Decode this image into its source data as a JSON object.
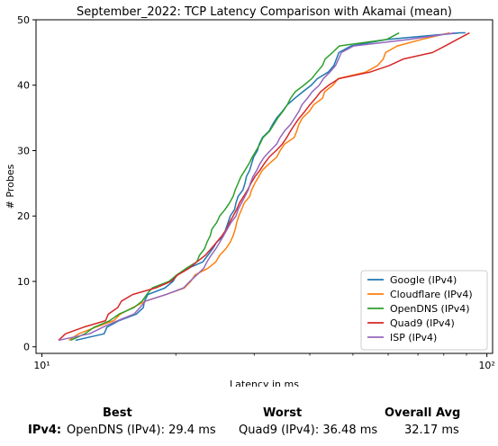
{
  "chart_data": {
    "type": "line",
    "title": "September_2022: TCP Latency Comparison with Akamai (mean)",
    "xlabel": "Latency in ms",
    "ylabel": "# Probes",
    "xscale": "log",
    "xlim": [
      9.7,
      103
    ],
    "ylim": [
      -1,
      50
    ],
    "yticks": [
      0,
      10,
      20,
      30,
      40,
      50
    ],
    "xticks": [
      {
        "value": 10,
        "label": "10¹"
      },
      {
        "value": 100,
        "label": "10²"
      }
    ],
    "grid": false,
    "legend_position": "lower-right",
    "series": [
      {
        "name": "Google (IPv4)",
        "color": "#1f77b4",
        "points": [
          [
            11.9,
            1
          ],
          [
            13.8,
            2
          ],
          [
            14.0,
            3
          ],
          [
            14.9,
            4
          ],
          [
            16.3,
            5
          ],
          [
            16.9,
            6
          ],
          [
            17.0,
            7
          ],
          [
            17.3,
            8
          ],
          [
            18.9,
            9
          ],
          [
            19.7,
            10
          ],
          [
            20.1,
            11
          ],
          [
            21.3,
            12
          ],
          [
            23.0,
            13
          ],
          [
            23.6,
            14
          ],
          [
            24.2,
            15
          ],
          [
            24.7,
            16
          ],
          [
            25.6,
            17
          ],
          [
            25.9,
            18
          ],
          [
            26.2,
            19
          ],
          [
            26.5,
            20
          ],
          [
            27.1,
            21
          ],
          [
            27.3,
            22
          ],
          [
            27.6,
            23
          ],
          [
            28.3,
            24
          ],
          [
            28.6,
            25
          ],
          [
            28.8,
            26
          ],
          [
            29.3,
            27
          ],
          [
            29.6,
            28
          ],
          [
            29.9,
            29
          ],
          [
            30.5,
            30
          ],
          [
            30.8,
            31
          ],
          [
            31.3,
            32
          ],
          [
            32.4,
            33
          ],
          [
            33.0,
            34
          ],
          [
            33.7,
            35
          ],
          [
            34.7,
            36
          ],
          [
            35.6,
            37
          ],
          [
            37.0,
            38
          ],
          [
            38.6,
            39
          ],
          [
            40.3,
            40
          ],
          [
            41.6,
            41
          ],
          [
            44.0,
            42
          ],
          [
            45.3,
            43
          ],
          [
            46.5,
            45
          ],
          [
            49.5,
            46
          ],
          [
            59.7,
            47
          ],
          [
            86.9,
            48
          ],
          [
            89.5,
            48
          ]
        ]
      },
      {
        "name": "Cloudflare (IPv4)",
        "color": "#ff7f0e",
        "points": [
          [
            11.5,
            1
          ],
          [
            12.1,
            2
          ],
          [
            13.2,
            3
          ],
          [
            14.5,
            4
          ],
          [
            15.0,
            5
          ],
          [
            16.0,
            6
          ],
          [
            17.1,
            7
          ],
          [
            19.0,
            8
          ],
          [
            20.9,
            9
          ],
          [
            21.6,
            10
          ],
          [
            22.1,
            11
          ],
          [
            23.6,
            12
          ],
          [
            24.6,
            13
          ],
          [
            25.1,
            14
          ],
          [
            25.9,
            15
          ],
          [
            26.5,
            16
          ],
          [
            26.9,
            17
          ],
          [
            27.2,
            18
          ],
          [
            27.4,
            19
          ],
          [
            27.7,
            20
          ],
          [
            28.1,
            21
          ],
          [
            28.5,
            22
          ],
          [
            29.3,
            23
          ],
          [
            29.6,
            24
          ],
          [
            30.1,
            25
          ],
          [
            30.7,
            26
          ],
          [
            31.3,
            27
          ],
          [
            32.4,
            28
          ],
          [
            33.7,
            29
          ],
          [
            34.3,
            30
          ],
          [
            35.1,
            31
          ],
          [
            36.9,
            32
          ],
          [
            37.4,
            33
          ],
          [
            37.8,
            34
          ],
          [
            38.5,
            35
          ],
          [
            39.9,
            36
          ],
          [
            40.8,
            37
          ],
          [
            42.7,
            38
          ],
          [
            43.2,
            39
          ],
          [
            45.1,
            40
          ],
          [
            46.3,
            41
          ],
          [
            53.4,
            42
          ],
          [
            56.8,
            43
          ],
          [
            58.5,
            44
          ],
          [
            59.2,
            45
          ],
          [
            62.9,
            46
          ],
          [
            71.4,
            47
          ],
          [
            82.4,
            48
          ]
        ]
      },
      {
        "name": "OpenDNS (IPv4)",
        "color": "#2ca02c",
        "points": [
          [
            11.6,
            1
          ],
          [
            12.5,
            2
          ],
          [
            13.1,
            3
          ],
          [
            14.2,
            4
          ],
          [
            14.9,
            5
          ],
          [
            16.1,
            6
          ],
          [
            16.8,
            7
          ],
          [
            17.2,
            8
          ],
          [
            17.7,
            9
          ],
          [
            19.3,
            10
          ],
          [
            20.1,
            11
          ],
          [
            21.1,
            12
          ],
          [
            22.3,
            13
          ],
          [
            22.6,
            14
          ],
          [
            23.2,
            15
          ],
          [
            23.5,
            16
          ],
          [
            23.9,
            17
          ],
          [
            24.1,
            18
          ],
          [
            24.7,
            19
          ],
          [
            25.1,
            20
          ],
          [
            25.8,
            21
          ],
          [
            26.4,
            22
          ],
          [
            26.9,
            23
          ],
          [
            27.2,
            24
          ],
          [
            27.6,
            25
          ],
          [
            28.0,
            26
          ],
          [
            28.6,
            27
          ],
          [
            29.2,
            28
          ],
          [
            29.7,
            29
          ],
          [
            30.3,
            30
          ],
          [
            30.9,
            31
          ],
          [
            31.4,
            32
          ],
          [
            32.5,
            33
          ],
          [
            33.2,
            34
          ],
          [
            33.9,
            35
          ],
          [
            34.8,
            36
          ],
          [
            35.6,
            37
          ],
          [
            36.2,
            38
          ],
          [
            37.1,
            39
          ],
          [
            38.8,
            40
          ],
          [
            40.4,
            41
          ],
          [
            41.5,
            42
          ],
          [
            42.7,
            43
          ],
          [
            43.3,
            44
          ],
          [
            45.0,
            45
          ],
          [
            46.6,
            46
          ],
          [
            59.6,
            47
          ],
          [
            63.5,
            48
          ]
        ]
      },
      {
        "name": "Quad9 (IPv4)",
        "color": "#d62728",
        "points": [
          [
            10.9,
            1
          ],
          [
            11.3,
            2
          ],
          [
            12.4,
            3
          ],
          [
            13.9,
            4
          ],
          [
            14.1,
            5
          ],
          [
            14.8,
            6
          ],
          [
            15.1,
            7
          ],
          [
            16.0,
            8
          ],
          [
            18.0,
            9
          ],
          [
            19.5,
            10
          ],
          [
            20.2,
            11
          ],
          [
            21.4,
            12
          ],
          [
            22.3,
            13
          ],
          [
            23.3,
            14
          ],
          [
            24.0,
            15
          ],
          [
            24.7,
            16
          ],
          [
            25.4,
            17
          ],
          [
            26.0,
            18
          ],
          [
            26.4,
            19
          ],
          [
            26.9,
            20
          ],
          [
            27.4,
            21
          ],
          [
            27.8,
            22
          ],
          [
            28.4,
            23
          ],
          [
            29.0,
            24
          ],
          [
            29.5,
            25
          ],
          [
            30.1,
            26
          ],
          [
            30.9,
            27
          ],
          [
            31.6,
            28
          ],
          [
            32.4,
            29
          ],
          [
            33.6,
            30
          ],
          [
            34.7,
            31
          ],
          [
            35.5,
            32
          ],
          [
            36.2,
            33
          ],
          [
            37.0,
            34
          ],
          [
            37.9,
            35
          ],
          [
            39.0,
            36
          ],
          [
            40.0,
            37
          ],
          [
            41.2,
            38
          ],
          [
            42.3,
            39
          ],
          [
            44.1,
            40
          ],
          [
            46.5,
            41
          ],
          [
            54.6,
            42
          ],
          [
            60.3,
            43
          ],
          [
            64.9,
            44
          ],
          [
            75.5,
            45
          ],
          [
            80.6,
            46
          ],
          [
            85.8,
            47
          ],
          [
            91.4,
            48
          ]
        ]
      },
      {
        "name": "ISP (IPv4)",
        "color": "#9467bd",
        "points": [
          [
            10.9,
            1
          ],
          [
            12.8,
            2
          ],
          [
            13.7,
            3
          ],
          [
            14.8,
            4
          ],
          [
            16.1,
            5
          ],
          [
            16.6,
            6
          ],
          [
            17.1,
            7
          ],
          [
            19.0,
            8
          ],
          [
            20.8,
            9
          ],
          [
            21.5,
            10
          ],
          [
            22.3,
            11
          ],
          [
            23.1,
            12
          ],
          [
            23.5,
            13
          ],
          [
            24.0,
            14
          ],
          [
            24.6,
            15
          ],
          [
            25.1,
            16
          ],
          [
            25.6,
            17
          ],
          [
            26.1,
            18
          ],
          [
            26.6,
            19
          ],
          [
            27.3,
            20
          ],
          [
            27.6,
            21
          ],
          [
            28.1,
            22
          ],
          [
            28.6,
            23
          ],
          [
            29.1,
            24
          ],
          [
            29.4,
            25
          ],
          [
            29.8,
            26
          ],
          [
            30.4,
            27
          ],
          [
            30.9,
            28
          ],
          [
            31.6,
            29
          ],
          [
            32.6,
            30
          ],
          [
            33.7,
            31
          ],
          [
            34.3,
            32
          ],
          [
            35.1,
            33
          ],
          [
            36.2,
            34
          ],
          [
            37.0,
            35
          ],
          [
            37.8,
            36
          ],
          [
            38.4,
            37
          ],
          [
            39.5,
            38
          ],
          [
            40.5,
            39
          ],
          [
            42.0,
            40
          ],
          [
            42.9,
            41
          ],
          [
            44.4,
            42
          ],
          [
            45.7,
            43
          ],
          [
            46.4,
            44
          ],
          [
            47.1,
            45
          ],
          [
            50.2,
            46
          ],
          [
            66.8,
            47
          ],
          [
            84.9,
            48
          ]
        ]
      }
    ]
  },
  "summary": {
    "headers": {
      "best": "Best",
      "worst": "Worst",
      "overall": "Overall Avg"
    },
    "row_label": "IPv4:",
    "best": "OpenDNS (IPv4): 29.4 ms",
    "worst": "Quad9 (IPv4): 36.48 ms",
    "overall": "32.17 ms"
  }
}
